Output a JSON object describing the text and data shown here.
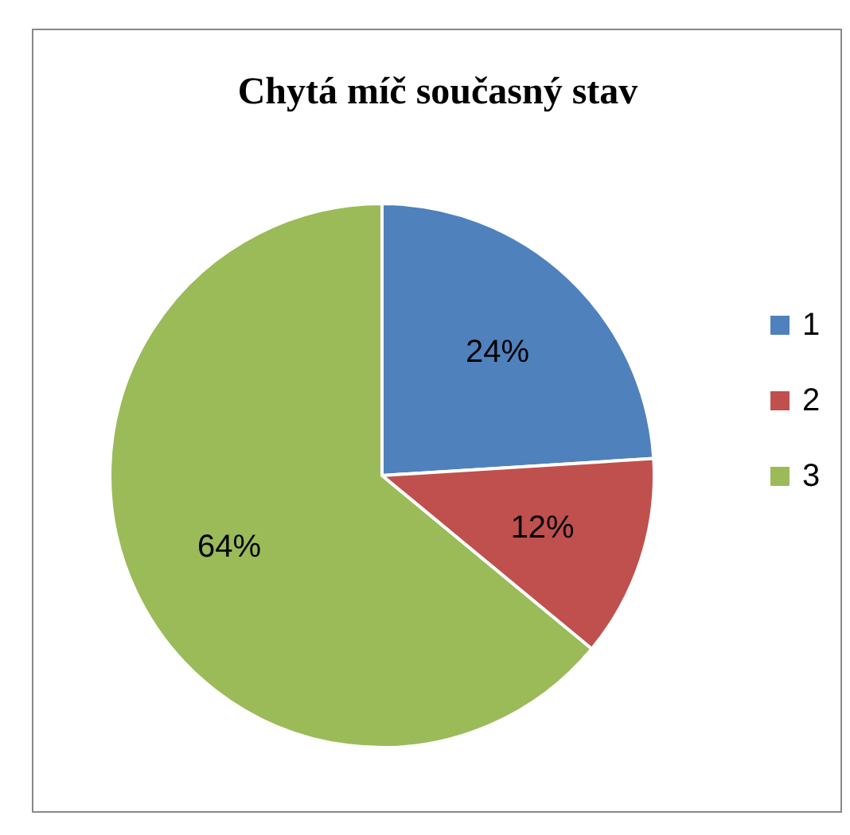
{
  "chart_data": {
    "type": "pie",
    "title": "Chytá míč současný stav",
    "categories": [
      "1",
      "2",
      "3"
    ],
    "values": [
      24,
      12,
      64
    ],
    "colors": [
      "#4f81bd",
      "#c0504d",
      "#9bbb59"
    ],
    "value_labels": [
      "24%",
      "12%",
      "64%"
    ],
    "legend": "right"
  }
}
